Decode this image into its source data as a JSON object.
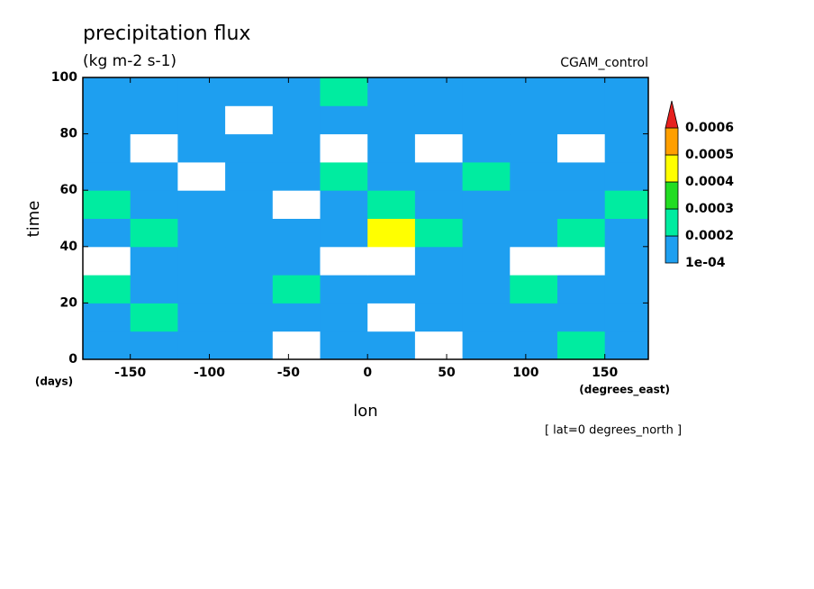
{
  "chart_data": {
    "type": "contour",
    "title": "precipitation flux",
    "subtitle": "(kg m-2 s-1)",
    "annotation": "CGAM_control",
    "xlabel": "lon",
    "xunits": "(degrees_east)",
    "ylabel": "time",
    "yunits": "(days)",
    "footnote": "[ lat=0 degrees_north ]",
    "x": [
      -165,
      -135,
      -105,
      -75,
      -45,
      -15,
      15,
      45,
      75,
      105,
      135,
      165
    ],
    "y": [
      5,
      15,
      25,
      35,
      45,
      55,
      65,
      75,
      85,
      95
    ],
    "z": [
      [
        0.00015,
        0.00018,
        0.00012,
        0.00016,
        8e-05,
        0.00017,
        0.00014,
        9e-05,
        0.00016,
        0.00019,
        0.00022,
        0.00015
      ],
      [
        0.00014,
        0.00021,
        0.00016,
        0.00019,
        0.00015,
        0.00012,
        8e-05,
        0.00015,
        0.00018,
        0.00014,
        0.00016,
        0.00013
      ],
      [
        0.00022,
        0.00016,
        0.00014,
        0.00017,
        0.00023,
        0.00015,
        0.00016,
        0.00013,
        0.00015,
        0.00024,
        0.00017,
        0.00016
      ],
      [
        9e-05,
        0.00015,
        0.00017,
        0.00013,
        0.00016,
        9e-05,
        8e-05,
        0.00016,
        0.00014,
        9e-05,
        8e-05,
        0.00015
      ],
      [
        0.00016,
        0.00024,
        0.00018,
        0.00015,
        0.00017,
        0.00016,
        0.00045,
        0.00026,
        0.00015,
        0.00017,
        0.00022,
        0.00016
      ],
      [
        0.00025,
        0.00018,
        0.00014,
        0.00016,
        9e-05,
        0.00019,
        0.00022,
        0.00016,
        0.00014,
        0.00018,
        0.00016,
        0.00023
      ],
      [
        0.00015,
        0.00017,
        9e-05,
        0.00016,
        0.00018,
        0.00024,
        0.00017,
        0.00015,
        0.00023,
        0.00016,
        0.00018,
        0.00015
      ],
      [
        0.00014,
        8e-05,
        0.00016,
        0.00015,
        0.00013,
        9e-05,
        0.00016,
        8e-05,
        0.00015,
        0.00014,
        9e-05,
        0.00016
      ],
      [
        0.00017,
        0.00015,
        0.00018,
        9e-05,
        0.00016,
        0.00014,
        0.00017,
        0.00016,
        0.00018,
        0.00015,
        0.00019,
        0.00014
      ],
      [
        0.00016,
        0.00014,
        0.00015,
        0.00017,
        0.00015,
        0.00021,
        0.00016,
        0.00015,
        0.00016,
        0.00017,
        0.00015,
        0.00016
      ]
    ],
    "levels": [
      {
        "value": 0.0001,
        "label": "1e-04"
      },
      0.0002,
      0.0003,
      0.0004,
      0.0005,
      0.0006
    ],
    "colors": [
      "#1e9ff0",
      "#00eca0",
      "#22dd22",
      "#ffff00",
      "#ff9f00",
      "#e6201e"
    ],
    "xlim": [
      -180,
      177.5
    ],
    "xticks": [
      -150,
      -100,
      -50,
      0,
      50,
      100,
      150
    ],
    "ylim": [
      0,
      100
    ],
    "yticks": [
      0,
      20,
      40,
      60,
      80,
      100
    ]
  }
}
